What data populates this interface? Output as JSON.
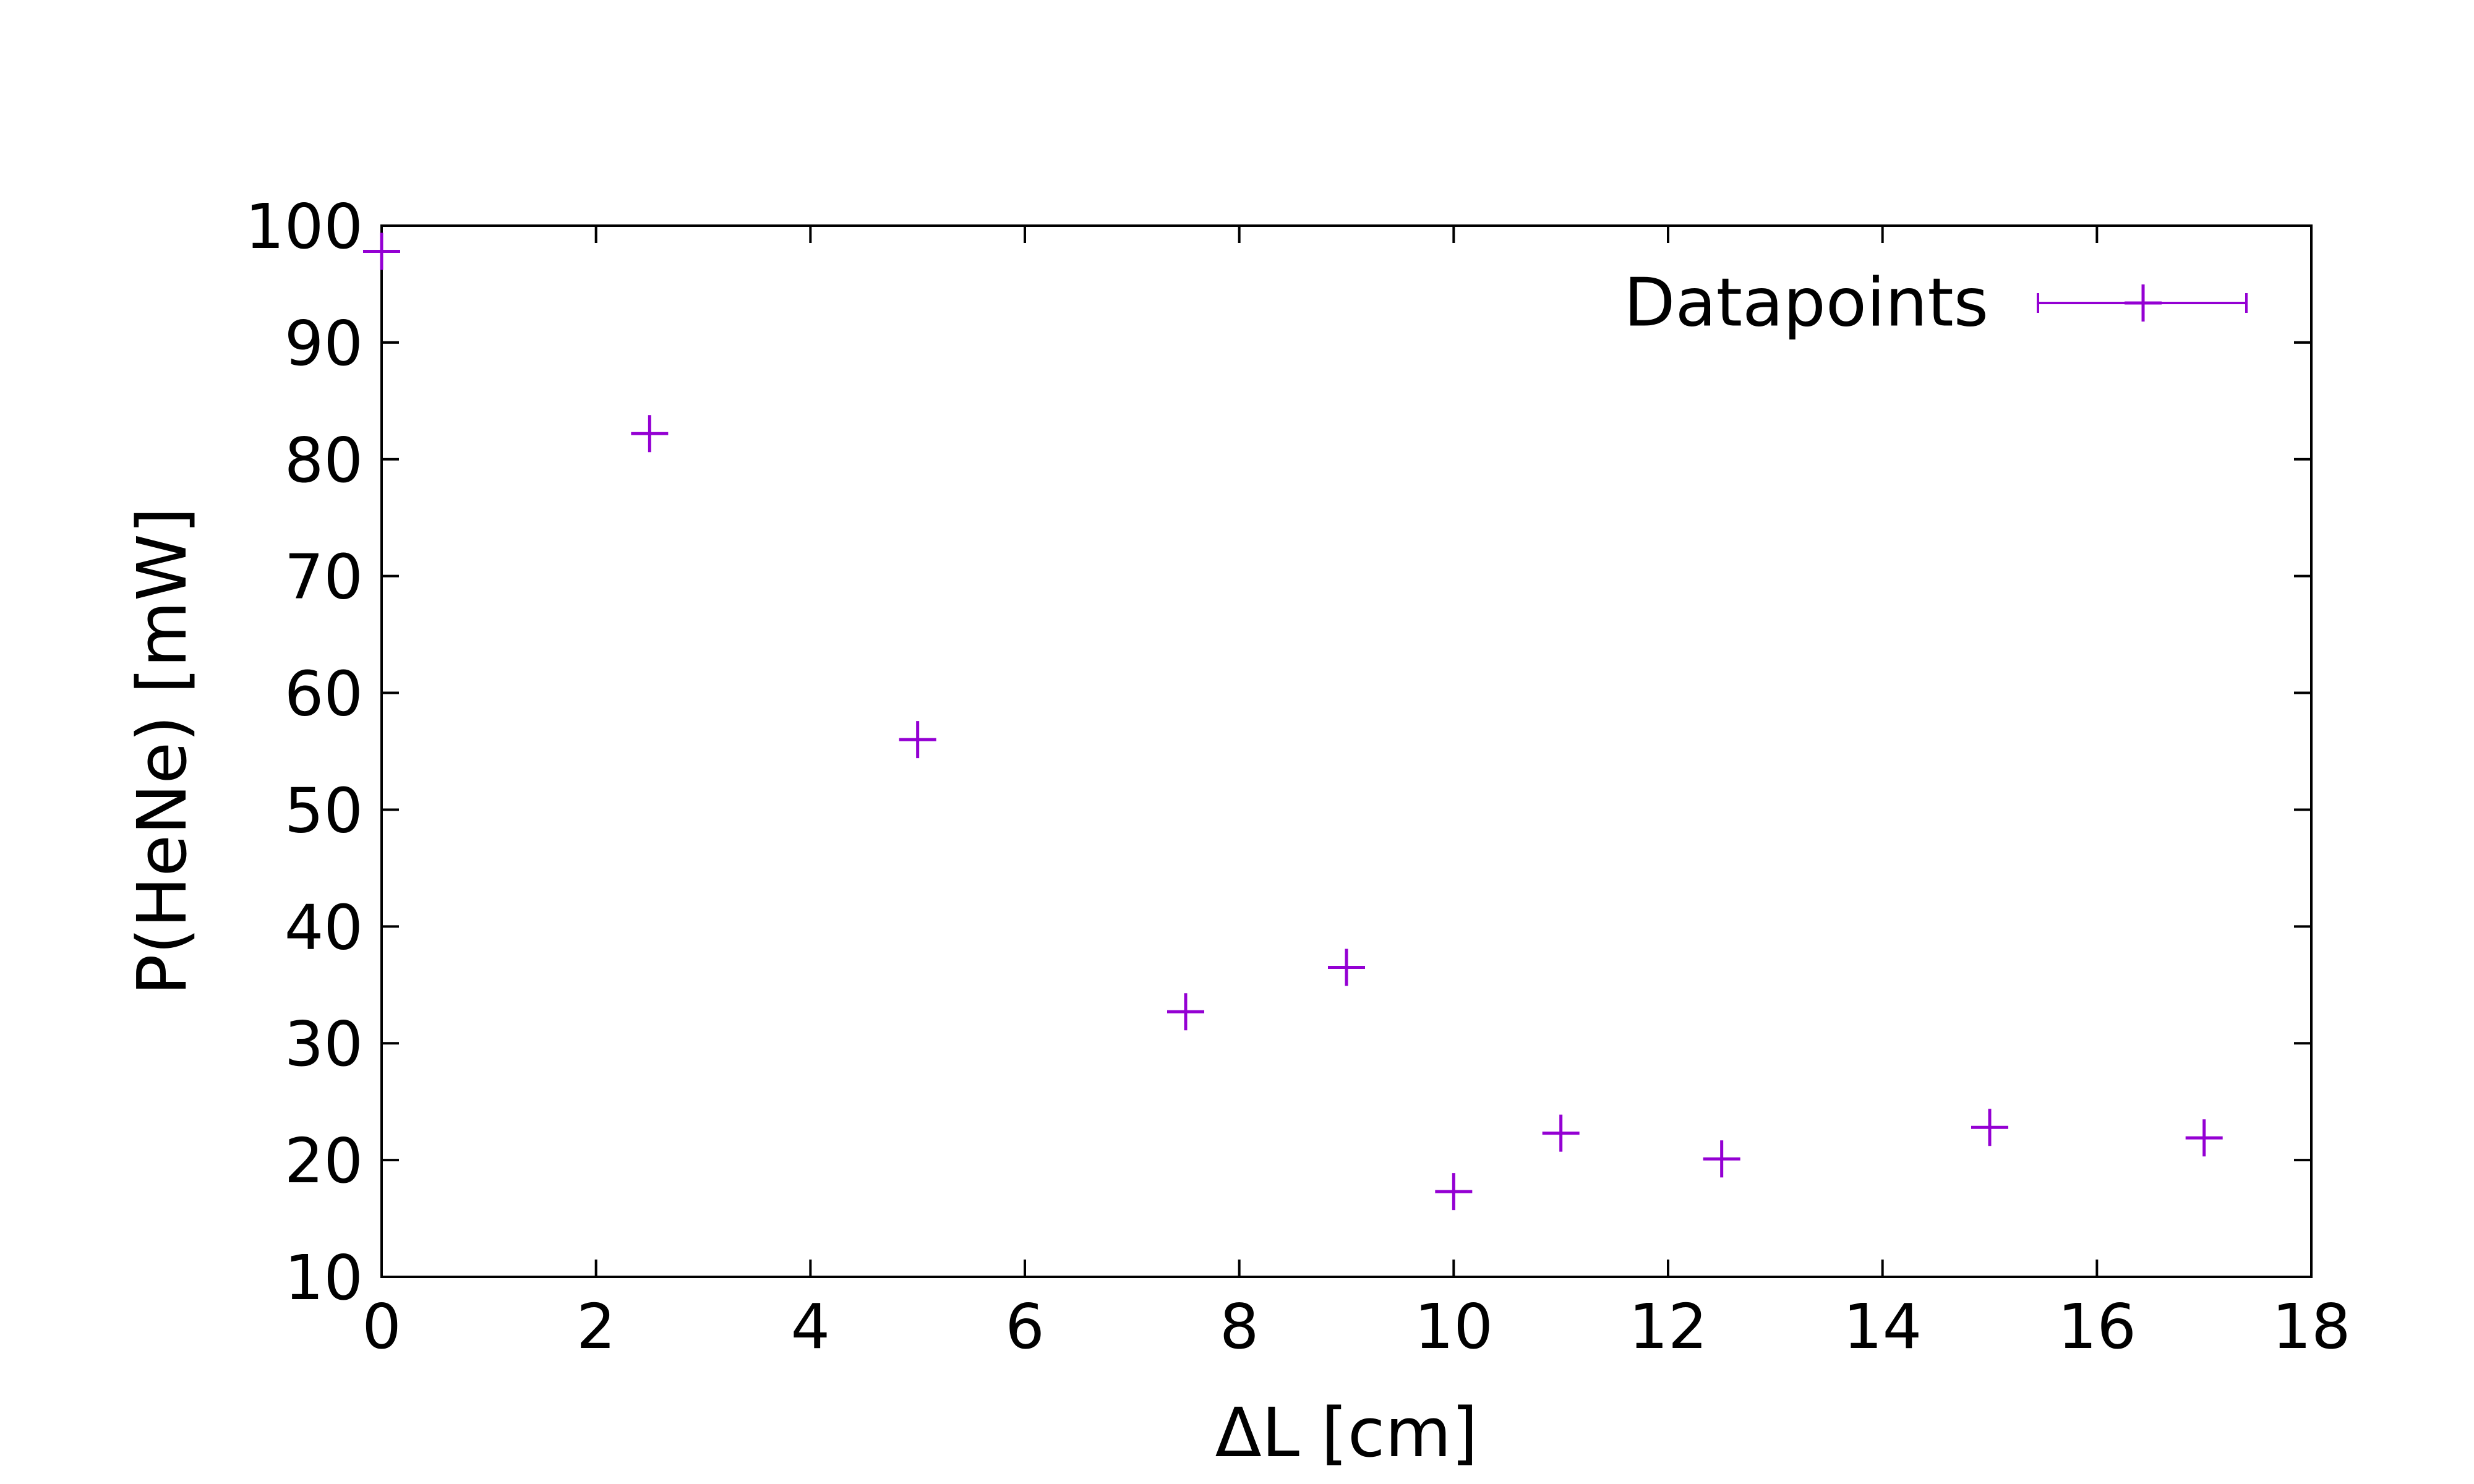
{
  "chart_data": {
    "type": "scatter",
    "xlabel": "ΔL [cm]",
    "ylabel": "P(HeNe) [mW]",
    "xlim": [
      0,
      18
    ],
    "ylim": [
      10,
      100
    ],
    "xticks": [
      "0",
      "2",
      "4",
      "6",
      "8",
      "10",
      "12",
      "14",
      "16",
      "18"
    ],
    "yticks": [
      "10",
      "20",
      "30",
      "40",
      "50",
      "60",
      "70",
      "80",
      "90",
      "100"
    ],
    "grid": false,
    "legend_position": "top-right",
    "marker": "plus",
    "color": "#9400d3",
    "series": [
      {
        "name": "Datapoints",
        "x": [
          0,
          2.5,
          5,
          7.5,
          9,
          10,
          11,
          12.5,
          15,
          17
        ],
        "y": [
          97.8,
          82.2,
          56,
          32.7,
          36.5,
          17.3,
          22.3,
          20.1,
          22.8,
          21.9
        ]
      }
    ]
  }
}
